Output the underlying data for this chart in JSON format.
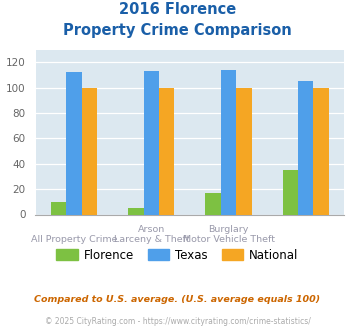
{
  "title_line1": "2016 Florence",
  "title_line2": "Property Crime Comparison",
  "series": {
    "Florence": [
      10,
      5,
      17,
      35
    ],
    "Texas": [
      112,
      113,
      114,
      105
    ],
    "National": [
      100,
      100,
      100,
      100
    ]
  },
  "colors": {
    "Florence": "#7dc142",
    "Texas": "#4f9fea",
    "National": "#f5a623"
  },
  "ylim": [
    0,
    130
  ],
  "yticks": [
    0,
    20,
    40,
    60,
    80,
    100,
    120
  ],
  "plot_bg_color": "#dce8f0",
  "title_color": "#1a5fa8",
  "label_color": "#9999aa",
  "footnote1": "Compared to U.S. average. (U.S. average equals 100)",
  "footnote2": "© 2025 CityRating.com - https://www.cityrating.com/crime-statistics/",
  "footnote1_color": "#cc6600",
  "footnote2_color": "#aaaaaa",
  "bar_width": 0.2,
  "legend_labels": [
    "Florence",
    "Texas",
    "National"
  ],
  "row1_labels": {
    "1": "Arson",
    "2": "Burglary"
  },
  "row2_labels": {
    "0": "All Property Crime",
    "1": "Larceny & Theft",
    "2": "Motor Vehicle Theft"
  }
}
